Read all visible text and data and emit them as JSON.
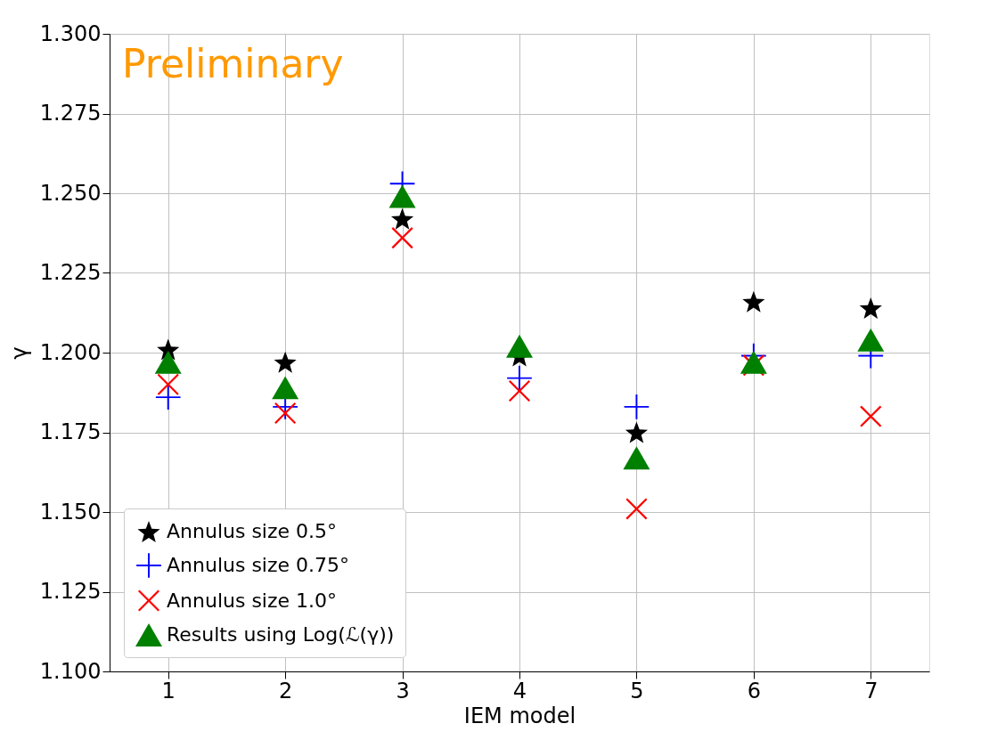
{
  "chart_data": {
    "type": "scatter",
    "xlabel": "IEM model",
    "ylabel": "γ",
    "annotations": [
      "Preliminary"
    ],
    "x": [
      1,
      2,
      3,
      4,
      5,
      6,
      7
    ],
    "xlim": [
      0.5,
      7.5
    ],
    "xticks": [
      1,
      2,
      3,
      4,
      5,
      6,
      7
    ],
    "ylim": [
      1.1,
      1.3
    ],
    "yticks": [
      {
        "value": 1.1,
        "label": "1.100"
      },
      1.125,
      {
        "value": 1.15,
        "label": "1.150"
      },
      1.175,
      {
        "value": 1.2,
        "label": "1.200"
      },
      1.225,
      {
        "value": 1.25,
        "label": "1.250"
      },
      1.275,
      {
        "value": 1.3,
        "label": "1.300"
      }
    ],
    "grid": true,
    "legend": "bottom left",
    "series": [
      {
        "name": "Annulus size 0.5°",
        "color": "#000000",
        "marker": "star",
        "values": [
          1.201,
          1.197,
          1.242,
          1.199,
          1.175,
          1.216,
          1.214
        ]
      },
      {
        "name": "Annulus size 0.75°",
        "color": "#0000ff",
        "marker": "cross",
        "values": [
          1.186,
          1.183,
          1.253,
          1.192,
          1.183,
          1.199,
          1.199
        ]
      },
      {
        "name": "Annulus size 1.0°",
        "color": "#ff0000",
        "marker": "cross",
        "values": [
          1.19,
          1.181,
          1.236,
          1.188,
          1.151,
          1.196,
          1.18
        ]
      },
      {
        "name": "Results using Log(ℒ(γ))",
        "color": "#008000",
        "marker": "triangle",
        "values": [
          1.197,
          1.189,
          1.249,
          1.202,
          1.167,
          1.197,
          1.204
        ]
      }
    ]
  }
}
